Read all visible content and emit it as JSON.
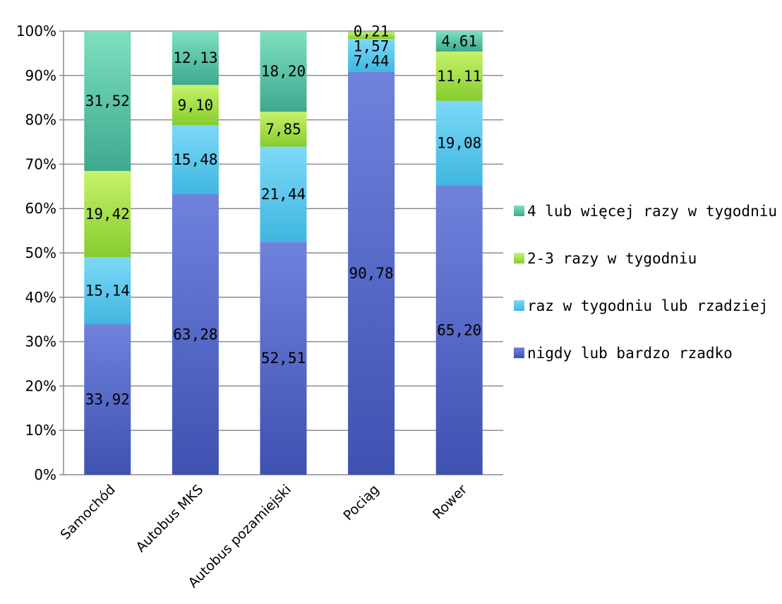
{
  "chart_data": {
    "type": "bar",
    "stacked": true,
    "percent_stacked": true,
    "categories": [
      "Samochód",
      "Autobus MKS",
      "Autobus pozamiejski",
      "Pociąg",
      "Rower"
    ],
    "series": [
      {
        "name": "nigdy lub bardzo rzadko",
        "values": [
          33.92,
          63.28,
          52.51,
          90.78,
          65.2
        ],
        "labels": [
          "33,92",
          "63,28",
          "52,51",
          "90,78",
          "65,20"
        ],
        "color_top": "#6f82dc",
        "color_bottom": "#3f51b1"
      },
      {
        "name": "raz w tygodniu lub rzadziej",
        "values": [
          15.14,
          15.48,
          21.44,
          7.44,
          19.08
        ],
        "labels": [
          "15,14",
          "15,48",
          "21,44",
          "7,44",
          "19,08"
        ],
        "color_top": "#7dd9f7",
        "color_bottom": "#3fb6e0"
      },
      {
        "name": "2-3 razy w tygodniu",
        "values": [
          19.42,
          9.1,
          7.85,
          1.57,
          11.11
        ],
        "labels": [
          "19,42",
          "9,10",
          "7,85",
          "1,57",
          "11,11"
        ],
        "color_top": "#c6f26a",
        "color_bottom": "#86cc2e"
      },
      {
        "name": "4 lub więcej razy w tygodniu",
        "values": [
          31.52,
          12.13,
          18.2,
          0.21,
          4.61
        ],
        "labels": [
          "31,52",
          "12,13",
          "18,20",
          "0,21",
          "4,61"
        ],
        "color_top": "#7de0c0",
        "color_bottom": "#3ea88e"
      }
    ],
    "y_ticks": [
      "0%",
      "10%",
      "20%",
      "30%",
      "40%",
      "50%",
      "60%",
      "70%",
      "80%",
      "90%",
      "100%"
    ],
    "ylim": [
      0,
      100
    ],
    "grid": true,
    "legend_position": "right",
    "legend_order": [
      3,
      2,
      1,
      0
    ]
  }
}
